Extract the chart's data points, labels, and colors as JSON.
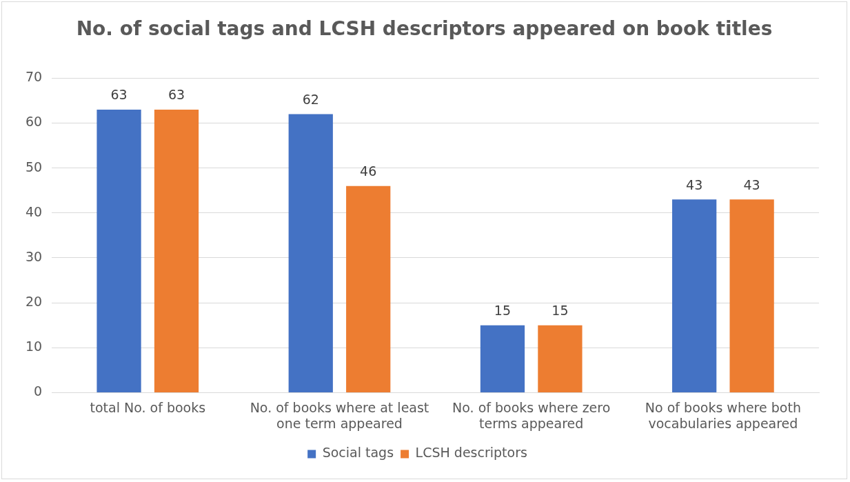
{
  "chart_data": {
    "type": "bar",
    "title": "No. of social tags and LCSH descriptors appeared on book titles",
    "categories": [
      "total No. of books",
      "No. of books where at least one term appeared",
      "No. of books where zero terms appeared",
      "No of books where both vocabularies appeared"
    ],
    "series": [
      {
        "name": "Social tags",
        "color": "#4472c4",
        "values": [
          63,
          62,
          15,
          43
        ]
      },
      {
        "name": "LCSH descriptors",
        "color": "#ed7d31",
        "values": [
          63,
          46,
          15,
          43
        ]
      }
    ],
    "ylim": [
      0,
      70
    ],
    "yticks": [
      0,
      10,
      20,
      30,
      40,
      50,
      60,
      70
    ],
    "grid": "y",
    "legend": "bottom",
    "data_labels": true
  }
}
